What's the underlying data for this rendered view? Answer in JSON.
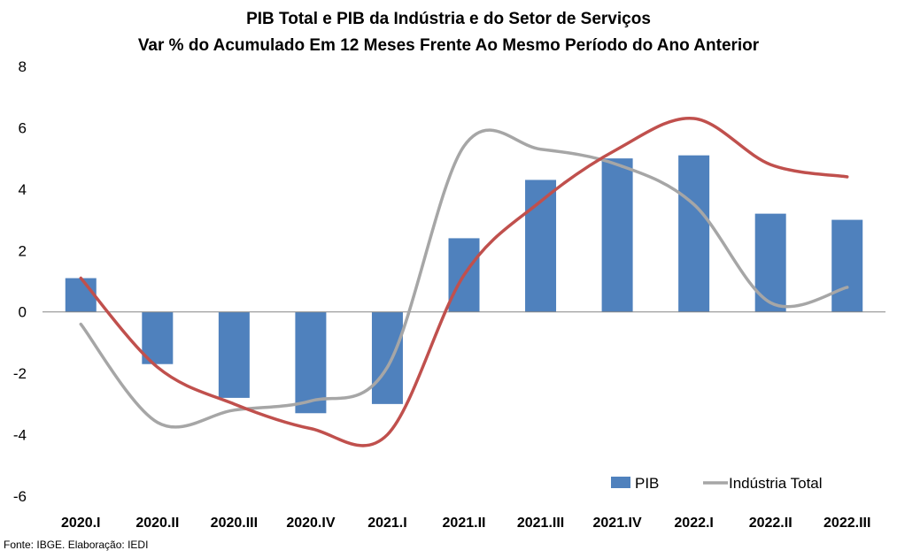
{
  "title_line1": "PIB Total e PIB da Indústria e do Setor de Serviços",
  "title_line2": "Var % do Acumulado Em 12 Meses Frente Ao Mesmo Período do Ano Anterior",
  "source": "Fonte: IBGE. Elaboração: IEDI",
  "chart_data": {
    "type": "bar",
    "categories": [
      "2020.I",
      "2020.II",
      "2020.III",
      "2020.IV",
      "2021.I",
      "2021.II",
      "2021.III",
      "2021.IV",
      "2022.I",
      "2022.II",
      "2022.III"
    ],
    "ylim": [
      -6,
      8
    ],
    "yticks": [
      "8",
      "6",
      "4",
      "2",
      "0",
      "-2",
      "-4",
      "-6"
    ],
    "grid": false,
    "legend_position": "bottom-right",
    "series": [
      {
        "name": "PIB",
        "kind": "bar",
        "color": "#4f81bd",
        "values": [
          1.1,
          -1.7,
          -2.8,
          -3.3,
          -3.0,
          2.4,
          4.3,
          5.0,
          5.1,
          3.2,
          3.0
        ]
      },
      {
        "name": "Indústria Total",
        "kind": "line",
        "color": "#a6a6a6",
        "values": [
          -0.4,
          -3.6,
          -3.2,
          -2.9,
          -1.8,
          5.4,
          5.3,
          4.8,
          3.5,
          0.3,
          0.8
        ]
      },
      {
        "name": "",
        "kind": "line",
        "color": "#c0504d",
        "values": [
          1.1,
          -1.8,
          -3.0,
          -3.8,
          -4.0,
          1.2,
          3.6,
          5.3,
          6.3,
          4.8,
          4.4
        ]
      }
    ]
  }
}
